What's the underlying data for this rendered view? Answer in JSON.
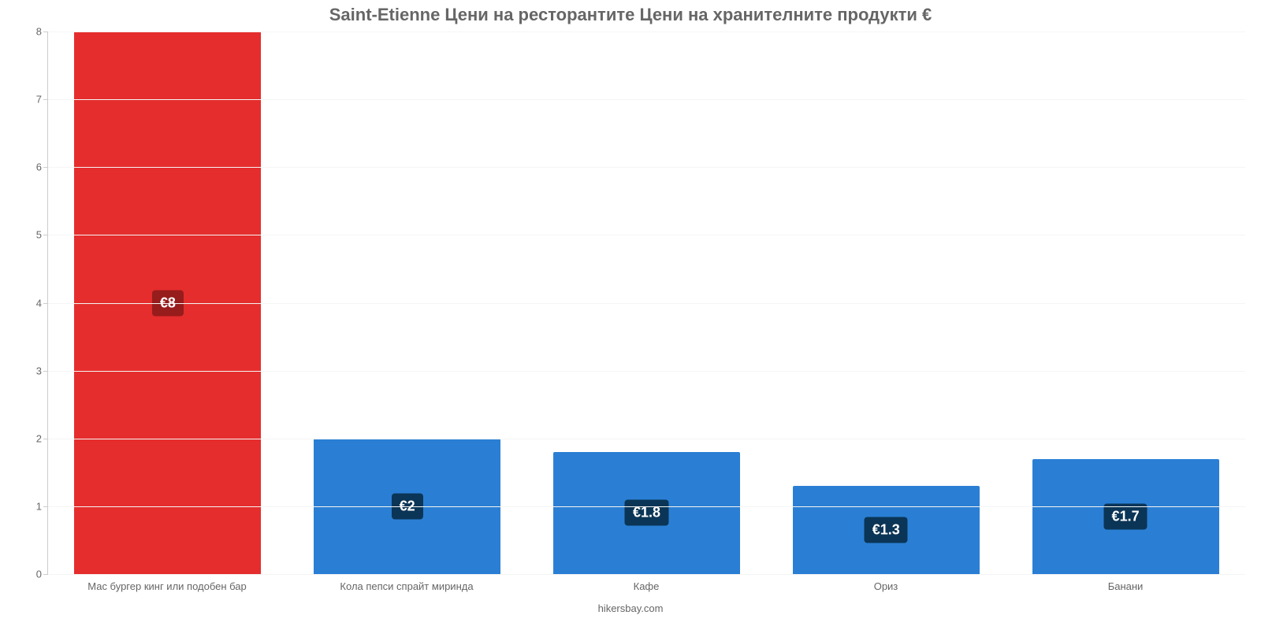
{
  "chart": {
    "type": "bar",
    "title": "Saint-Etienne Цени на ресторантите Цени на хранителните продукти €",
    "title_fontsize": 22,
    "title_color": "#666666",
    "credit": "hikersbay.com",
    "credit_fontsize": 13,
    "credit_color": "#666666",
    "background_color": "#ffffff",
    "axis_color": "#cccccc",
    "grid_color": "#f5f5f5",
    "tick_label_color": "#666666",
    "tick_label_fontsize": 13,
    "ylim": [
      0,
      8
    ],
    "yticks": [
      0,
      1,
      2,
      3,
      4,
      5,
      6,
      7,
      8
    ],
    "bar_width": 0.78,
    "bar_border_radius": 2,
    "datalabel_fontsize": 18,
    "datalabel_color": "#ffffff",
    "categories": [
      "Мас бургер кинг или подобен бар",
      "Кола пепси спрайт миринда",
      "Кафе",
      "Ориз",
      "Банани"
    ],
    "values": [
      8,
      2,
      1.8,
      1.3,
      1.7
    ],
    "value_labels": [
      "€8",
      "€2",
      "€1.8",
      "€1.3",
      "€1.7"
    ],
    "bar_colors": [
      "#e52d2d",
      "#2a7fd4",
      "#2a7fd4",
      "#2a7fd4",
      "#2a7fd4"
    ],
    "datalabel_bg": [
      "#971c1c",
      "#0b3556",
      "#0b3556",
      "#0b3556",
      "#0b3556"
    ]
  }
}
